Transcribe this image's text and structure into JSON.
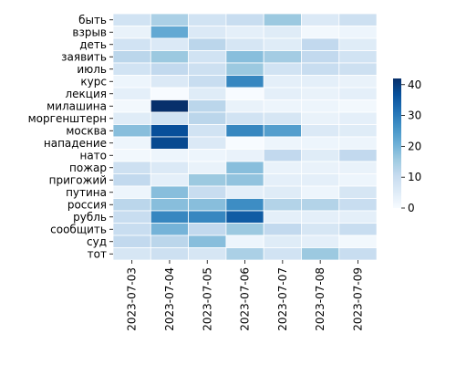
{
  "chart_data": {
    "type": "heatmap",
    "title": "",
    "xlabel": "",
    "ylabel": "",
    "x": [
      "2023-07-03",
      "2023-07-04",
      "2023-07-05",
      "2023-07-06",
      "2023-07-07",
      "2023-07-08",
      "2023-07-09"
    ],
    "y": [
      "быть",
      "взрыв",
      "деть",
      "заявить",
      "июль",
      "курс",
      "лекция",
      "милашина",
      "моргенштерн",
      "москва",
      "нападение",
      "нато",
      "пожар",
      "пригожий",
      "путина",
      "россия",
      "рубль",
      "сообщить",
      "суд",
      "тот"
    ],
    "values": [
      [
        8,
        14,
        8,
        10,
        16,
        6,
        9
      ],
      [
        3,
        22,
        6,
        4,
        5,
        1,
        2
      ],
      [
        8,
        6,
        12,
        7,
        5,
        11,
        5
      ],
      [
        12,
        16,
        8,
        18,
        15,
        11,
        8
      ],
      [
        8,
        11,
        9,
        16,
        8,
        10,
        9
      ],
      [
        2,
        6,
        10,
        28,
        4,
        4,
        3
      ],
      [
        4,
        0,
        5,
        0,
        4,
        3,
        4
      ],
      [
        1,
        42,
        12,
        3,
        2,
        2,
        1
      ],
      [
        5,
        8,
        12,
        8,
        7,
        3,
        4
      ],
      [
        18,
        37,
        8,
        28,
        24,
        6,
        5
      ],
      [
        2,
        38,
        6,
        0,
        2,
        2,
        2
      ],
      [
        1,
        2,
        2,
        3,
        11,
        5,
        11
      ],
      [
        9,
        6,
        3,
        18,
        3,
        3,
        3
      ],
      [
        11,
        4,
        16,
        17,
        4,
        4,
        2
      ],
      [
        2,
        18,
        10,
        4,
        5,
        2,
        7
      ],
      [
        12,
        18,
        18,
        27,
        13,
        13,
        10
      ],
      [
        10,
        28,
        28,
        35,
        4,
        4,
        4
      ],
      [
        10,
        20,
        11,
        16,
        11,
        7,
        10
      ],
      [
        11,
        12,
        18,
        2,
        5,
        4,
        1
      ],
      [
        7,
        9,
        7,
        14,
        8,
        16,
        10
      ]
    ],
    "colorbar": {
      "min": 0,
      "max": 42,
      "ticks": [
        0,
        10,
        20,
        30,
        40
      ]
    },
    "colormap": [
      "#f7fbff",
      "#deebf7",
      "#c6dbef",
      "#9ecae1",
      "#6baed6",
      "#4292c6",
      "#2171b5",
      "#08519c",
      "#08306b"
    ]
  }
}
